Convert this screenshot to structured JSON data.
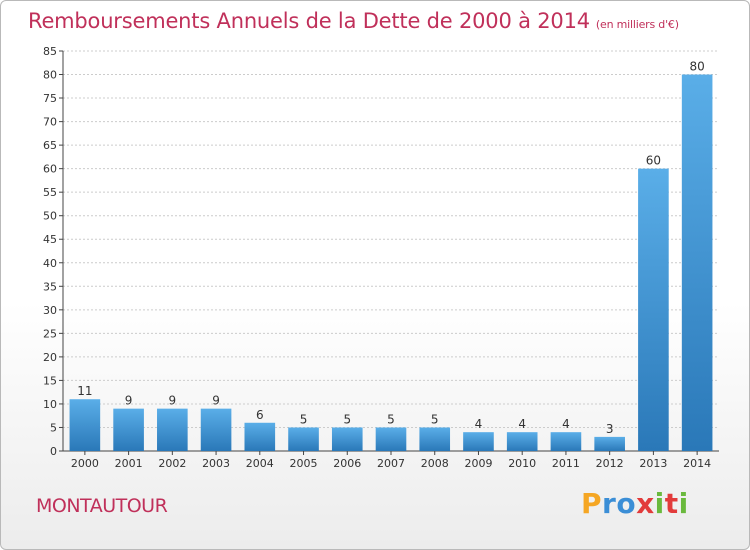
{
  "title": "Remboursements Annuels de la Dette de 2000 à 2014",
  "unit": "(en milliers d'€)",
  "town": "MONTAUTOUR",
  "brand": {
    "letters": [
      "P",
      "r",
      "o",
      "x",
      "i",
      "t",
      "i"
    ],
    "colors": [
      "#f5a623",
      "#3b8ed6",
      "#3b8ed6",
      "#e23b3b",
      "#6ab93d",
      "#e23b3b",
      "#6ab93d"
    ]
  },
  "colors": {
    "title": "#c0305a",
    "bar_top": "#5aaee8",
    "bar_bottom": "#2a78b8",
    "grid": "#cccccc"
  },
  "chart_data": {
    "type": "bar",
    "categories": [
      "2000",
      "2001",
      "2002",
      "2003",
      "2004",
      "2005",
      "2006",
      "2007",
      "2008",
      "2009",
      "2010",
      "2011",
      "2012",
      "2013",
      "2014"
    ],
    "values": [
      11,
      9,
      9,
      9,
      6,
      5,
      5,
      5,
      5,
      4,
      4,
      4,
      3,
      60,
      80
    ],
    "ylim": [
      0,
      85
    ],
    "yticks": [
      0,
      5,
      10,
      15,
      20,
      25,
      30,
      35,
      40,
      45,
      50,
      55,
      60,
      65,
      70,
      75,
      80,
      85
    ],
    "grid": true,
    "xlabel": "",
    "ylabel": ""
  }
}
